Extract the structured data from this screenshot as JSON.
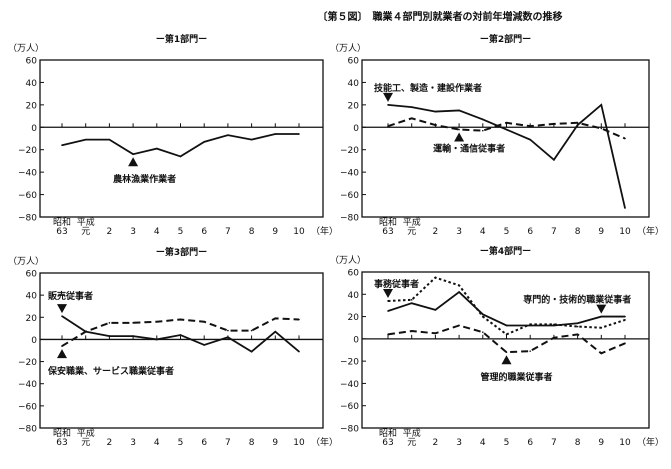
{
  "title": "〔第５図〕　職業４部門別就業者の対前年増減数の推移",
  "chart_data": [
    {
      "type": "line",
      "title": "ー第1部門ー",
      "ylabel": "（万人）",
      "xlabel": "（年）",
      "era_labels": [
        "昭和",
        "平成"
      ],
      "categories": [
        "63",
        "元",
        "2",
        "3",
        "4",
        "5",
        "6",
        "7",
        "8",
        "9",
        "10"
      ],
      "ylim": [
        -80,
        60
      ],
      "yticks": [
        60,
        40,
        20,
        0,
        -20,
        -40,
        -60,
        -80
      ],
      "grid": false,
      "series": [
        {
          "name": "農林漁業作業者",
          "style": "solid",
          "values": [
            -16,
            -11,
            -11,
            -24,
            -19,
            -26,
            -13,
            -7,
            -11,
            -6,
            -6
          ],
          "marker_index": 3,
          "marker_dir": "up"
        }
      ]
    },
    {
      "type": "line",
      "title": "ー第2部門ー",
      "ylabel": "（万人）",
      "xlabel": "（年）",
      "era_labels": [
        "昭和",
        "平成"
      ],
      "categories": [
        "63",
        "元",
        "2",
        "3",
        "4",
        "5",
        "6",
        "7",
        "8",
        "9",
        "10"
      ],
      "ylim": [
        -80,
        60
      ],
      "yticks": [
        60,
        40,
        20,
        0,
        -20,
        -40,
        -60,
        -80
      ],
      "grid": false,
      "series": [
        {
          "name": "技能工、製造・建設作業者",
          "style": "solid",
          "values": [
            20,
            18,
            14,
            15,
            7,
            -2,
            -11,
            -29,
            2,
            20,
            -72
          ],
          "marker_index": 0,
          "marker_dir": "down"
        },
        {
          "name": "運輸・通信従事者",
          "style": "dashed",
          "values": [
            1,
            8,
            2,
            -2,
            -3,
            4,
            1,
            3,
            4,
            -1,
            -10
          ],
          "marker_index": 3,
          "marker_dir": "up"
        }
      ]
    },
    {
      "type": "line",
      "title": "ー第3部門ー",
      "ylabel": "（万人）",
      "xlabel": "（年）",
      "era_labels": [
        "昭和",
        "平成"
      ],
      "categories": [
        "63",
        "元",
        "2",
        "3",
        "4",
        "5",
        "6",
        "7",
        "8",
        "9",
        "10"
      ],
      "ylim": [
        -80,
        60
      ],
      "yticks": [
        60,
        40,
        20,
        0,
        -20,
        -40,
        -60,
        -80
      ],
      "grid": false,
      "series": [
        {
          "name": "販売従事者",
          "style": "solid",
          "values": [
            21,
            7,
            3,
            3,
            0,
            4,
            -5,
            2,
            -11,
            7,
            -11
          ],
          "marker_index": 0,
          "marker_dir": "down"
        },
        {
          "name": "保安職業、サービス職業従事者",
          "style": "dashed",
          "values": [
            -6,
            7,
            15,
            15,
            16,
            18,
            16,
            8,
            8,
            19,
            18
          ],
          "marker_index": 0,
          "marker_dir": "up"
        }
      ]
    },
    {
      "type": "line",
      "title": "ー第4部門ー",
      "ylabel": "（万人）",
      "xlabel": "（年）",
      "era_labels": [
        "昭和",
        "平成"
      ],
      "categories": [
        "63",
        "元",
        "2",
        "3",
        "4",
        "5",
        "6",
        "7",
        "8",
        "9",
        "10"
      ],
      "ylim": [
        -80,
        60
      ],
      "yticks": [
        60,
        40,
        20,
        0,
        -20,
        -40,
        -60,
        -80
      ],
      "grid": false,
      "series": [
        {
          "name": "事務従事者",
          "style": "dotted",
          "values": [
            34,
            35,
            55,
            48,
            20,
            4,
            13,
            13,
            11,
            10,
            17
          ],
          "marker_index": 0,
          "marker_dir": "down"
        },
        {
          "name": "専門的・技術的職業従事者",
          "style": "solid",
          "values": [
            25,
            32,
            26,
            42,
            22,
            12,
            12,
            12,
            14,
            20,
            20
          ],
          "marker_index": 9,
          "marker_dir": "down"
        },
        {
          "name": "管理的職業従事者",
          "style": "dashed",
          "values": [
            4,
            7,
            5,
            12,
            6,
            -12,
            -11,
            1,
            4,
            -13,
            -4
          ],
          "marker_index": 5,
          "marker_dir": "up"
        }
      ]
    }
  ]
}
